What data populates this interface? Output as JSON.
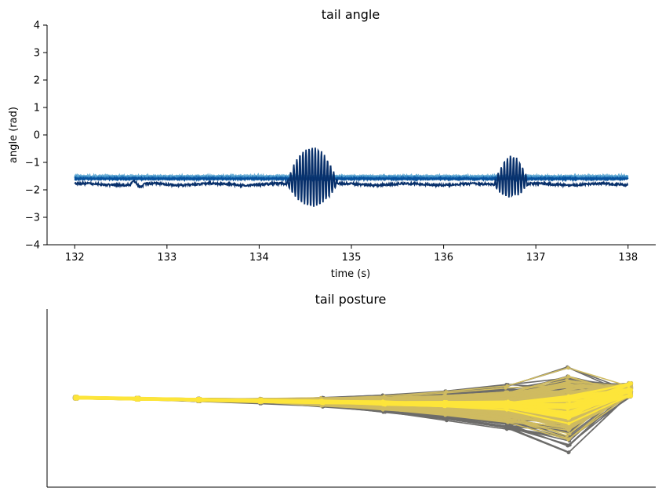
{
  "chart_data": [
    {
      "type": "line",
      "title": "tail angle",
      "xlabel": "time (s)",
      "ylabel": "angle (rad)",
      "xlim": [
        131.7,
        138.3
      ],
      "ylim": [
        -4,
        4
      ],
      "x_ticks": [
        132,
        133,
        134,
        135,
        136,
        137,
        138
      ],
      "y_ticks": [
        4,
        3,
        2,
        1,
        0,
        -1,
        -2,
        -3,
        -4
      ],
      "grid": false,
      "series": [
        {
          "color": "#6baed6",
          "baseline": -1.5,
          "pattern": "flat"
        },
        {
          "color": "#4292c6",
          "baseline": -1.55,
          "pattern": "flat"
        },
        {
          "color": "#2171b5",
          "baseline": -1.58,
          "pattern": "flat"
        },
        {
          "color": "#08519c",
          "baseline": -1.6,
          "pattern": "flat"
        },
        {
          "color": "#08306b",
          "baseline": -1.8,
          "pattern": "bouts",
          "bouts": [
            {
              "start": 134.3,
              "end": 134.85,
              "center": 134.6,
              "amplitude": 1.1,
              "frequency": 30
            },
            {
              "start": 136.55,
              "end": 136.92,
              "center": 136.75,
              "amplitude": 0.75,
              "frequency": 30
            }
          ]
        }
      ]
    },
    {
      "type": "line",
      "title": "tail posture",
      "xlabel": "",
      "ylabel": "",
      "grid": false,
      "segments_per_posture": 9,
      "postures_shown": 160,
      "colors": {
        "overlay": "#6d6c6a",
        "posture": "#cfbb61",
        "mean": "#fde53a"
      },
      "description_note": ""
    }
  ]
}
